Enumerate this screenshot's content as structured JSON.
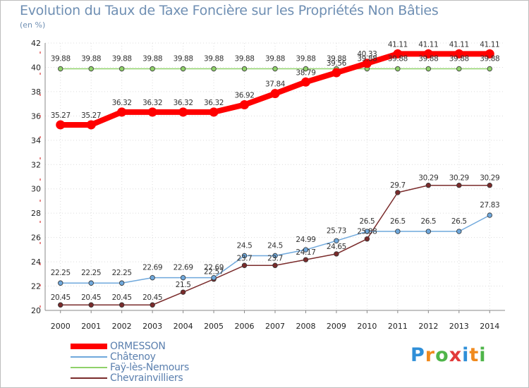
{
  "title": "Evolution du Taux de Taxe Foncière sur les Propriétés Non Bâties",
  "unit_label": "(en %)",
  "logo": {
    "letters": [
      "P",
      "r",
      "o",
      "x",
      "i",
      "t",
      "i"
    ],
    "colors": [
      "#2f8fd8",
      "#f08a1e",
      "#4fb54a",
      "#e23a3a",
      "#2f8fd8",
      "#f08a1e",
      "#4fb54a"
    ]
  },
  "chart_data": {
    "type": "line",
    "title": "Evolution du Taux de Taxe Foncière sur les Propriétés Non Bâties",
    "ylabel": "(en %)",
    "xlabel": "",
    "x": [
      "2000",
      "2001",
      "2002",
      "2003",
      "2004",
      "2005",
      "2006",
      "2007",
      "2008",
      "2009",
      "2010",
      "2011",
      "2012",
      "2013",
      "2014"
    ],
    "ylim": [
      20,
      42
    ],
    "yticks": [
      "20",
      "22",
      "24",
      "26",
      "28",
      "30",
      "32",
      "34",
      "36",
      "38",
      "40",
      "42"
    ],
    "grid": true,
    "legend_position": "bottom-left",
    "series": [
      {
        "name": "ORMESSON",
        "color": "#ff0000",
        "values": [
          35.27,
          35.27,
          36.32,
          36.32,
          36.32,
          36.32,
          36.92,
          37.84,
          38.79,
          39.56,
          40.33,
          41.11,
          41.11,
          41.11,
          41.11
        ],
        "labels": [
          "35.27",
          "35.27",
          "36.32",
          "36.32",
          "36.32",
          "36.32",
          "36.92",
          "37.84",
          "38.79",
          "39.56",
          "40.33",
          "41.11",
          "41.11",
          "41.11",
          "41.11"
        ]
      },
      {
        "name": "Châtenoy",
        "color": "#6fa8dc",
        "values": [
          22.25,
          22.25,
          22.25,
          22.69,
          22.69,
          22.69,
          24.5,
          24.5,
          24.99,
          25.73,
          26.5,
          26.5,
          26.5,
          26.5,
          27.83
        ],
        "labels": [
          "22.25",
          "22.25",
          "22.25",
          "22.69",
          "22.69",
          "22.69",
          "24.5",
          "24.5",
          "24.99",
          "25.73",
          "26.5",
          "26.5",
          "26.5",
          "26.5",
          "27.83"
        ]
      },
      {
        "name": "Faÿ-lès-Nemours",
        "color": "#8fd16a",
        "values": [
          39.88,
          39.88,
          39.88,
          39.88,
          39.88,
          39.88,
          39.88,
          39.88,
          39.88,
          39.88,
          39.88,
          39.88,
          39.88,
          39.88,
          39.88
        ],
        "labels": [
          "39.88",
          "39.88",
          "39.88",
          "39.88",
          "39.88",
          "39.88",
          "39.88",
          "39.88",
          "39.88",
          "39.88",
          "39.88",
          "39.88",
          "39.88",
          "39.88",
          "39.88"
        ]
      },
      {
        "name": "Chevrainvilliers",
        "color": "#7a2b2b",
        "values": [
          20.45,
          20.45,
          20.45,
          20.45,
          21.5,
          22.57,
          23.7,
          23.7,
          24.17,
          24.65,
          25.88,
          29.7,
          30.29,
          30.29,
          30.29
        ],
        "labels": [
          "20.45",
          "20.45",
          "20.45",
          "20.45",
          "21.5",
          "22.57",
          "23.7",
          "23.7",
          "24.17",
          "24.65",
          "25.88",
          "29.7",
          "30.29",
          "30.29",
          "30.29"
        ]
      }
    ]
  }
}
